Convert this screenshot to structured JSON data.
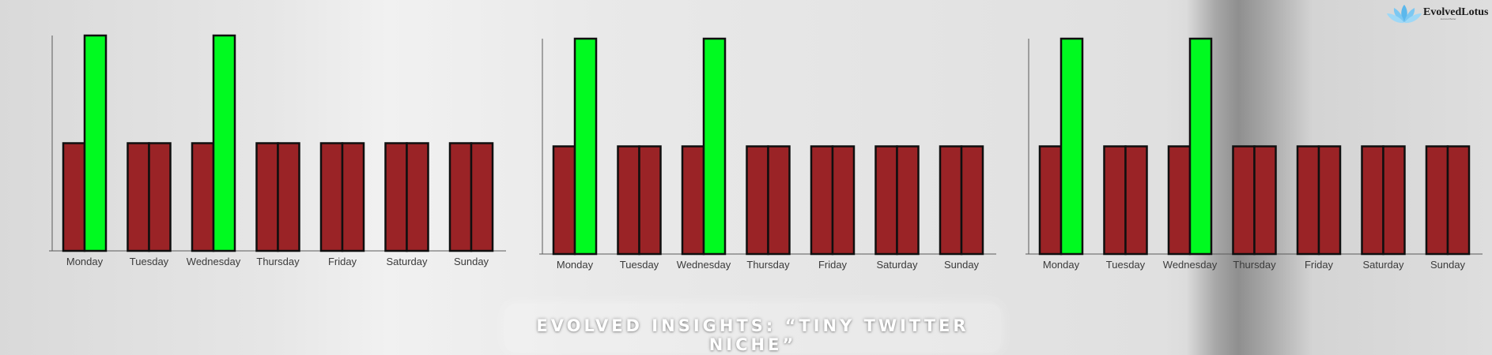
{
  "brand": {
    "logo_text": "EvolvedLotus",
    "logo_tag": "Evolved Better",
    "logo_icon": "lotus-icon"
  },
  "banner": {
    "text": "Evolved Insights: “Tiny Twitter Niche”"
  },
  "colors": {
    "base": "#9a2326",
    "highlight": "#00fa20",
    "outline": "#0f0f0f",
    "axis": "#5a5a5a"
  },
  "chart_data": [
    {
      "type": "bar",
      "categories": [
        "Monday",
        "Tuesday",
        "Wednesday",
        "Thursday",
        "Friday",
        "Saturday",
        "Sunday"
      ],
      "series": [
        {
          "values": [
            50,
            50,
            50,
            50,
            50,
            50,
            50
          ]
        },
        {
          "values": [
            100,
            50,
            100,
            50,
            50,
            50,
            50
          ]
        }
      ],
      "highlight": [
        true,
        false,
        true,
        false,
        false,
        false,
        false
      ],
      "ylim": [
        0,
        100
      ]
    },
    {
      "type": "bar",
      "categories": [
        "Monday",
        "Tuesday",
        "Wednesday",
        "Thursday",
        "Friday",
        "Saturday",
        "Sunday"
      ],
      "series": [
        {
          "values": [
            50,
            50,
            50,
            50,
            50,
            50,
            50
          ]
        },
        {
          "values": [
            100,
            50,
            100,
            50,
            50,
            50,
            50
          ]
        }
      ],
      "highlight": [
        true,
        false,
        true,
        false,
        false,
        false,
        false
      ],
      "ylim": [
        0,
        100
      ]
    },
    {
      "type": "bar",
      "categories": [
        "Monday",
        "Tuesday",
        "Wednesday",
        "Thursday",
        "Friday",
        "Saturday",
        "Sunday"
      ],
      "series": [
        {
          "values": [
            50,
            50,
            50,
            50,
            50,
            50,
            50
          ]
        },
        {
          "values": [
            100,
            50,
            100,
            50,
            50,
            50,
            50
          ]
        }
      ],
      "highlight": [
        true,
        false,
        true,
        false,
        false,
        false,
        false
      ],
      "ylim": [
        0,
        100
      ]
    }
  ]
}
